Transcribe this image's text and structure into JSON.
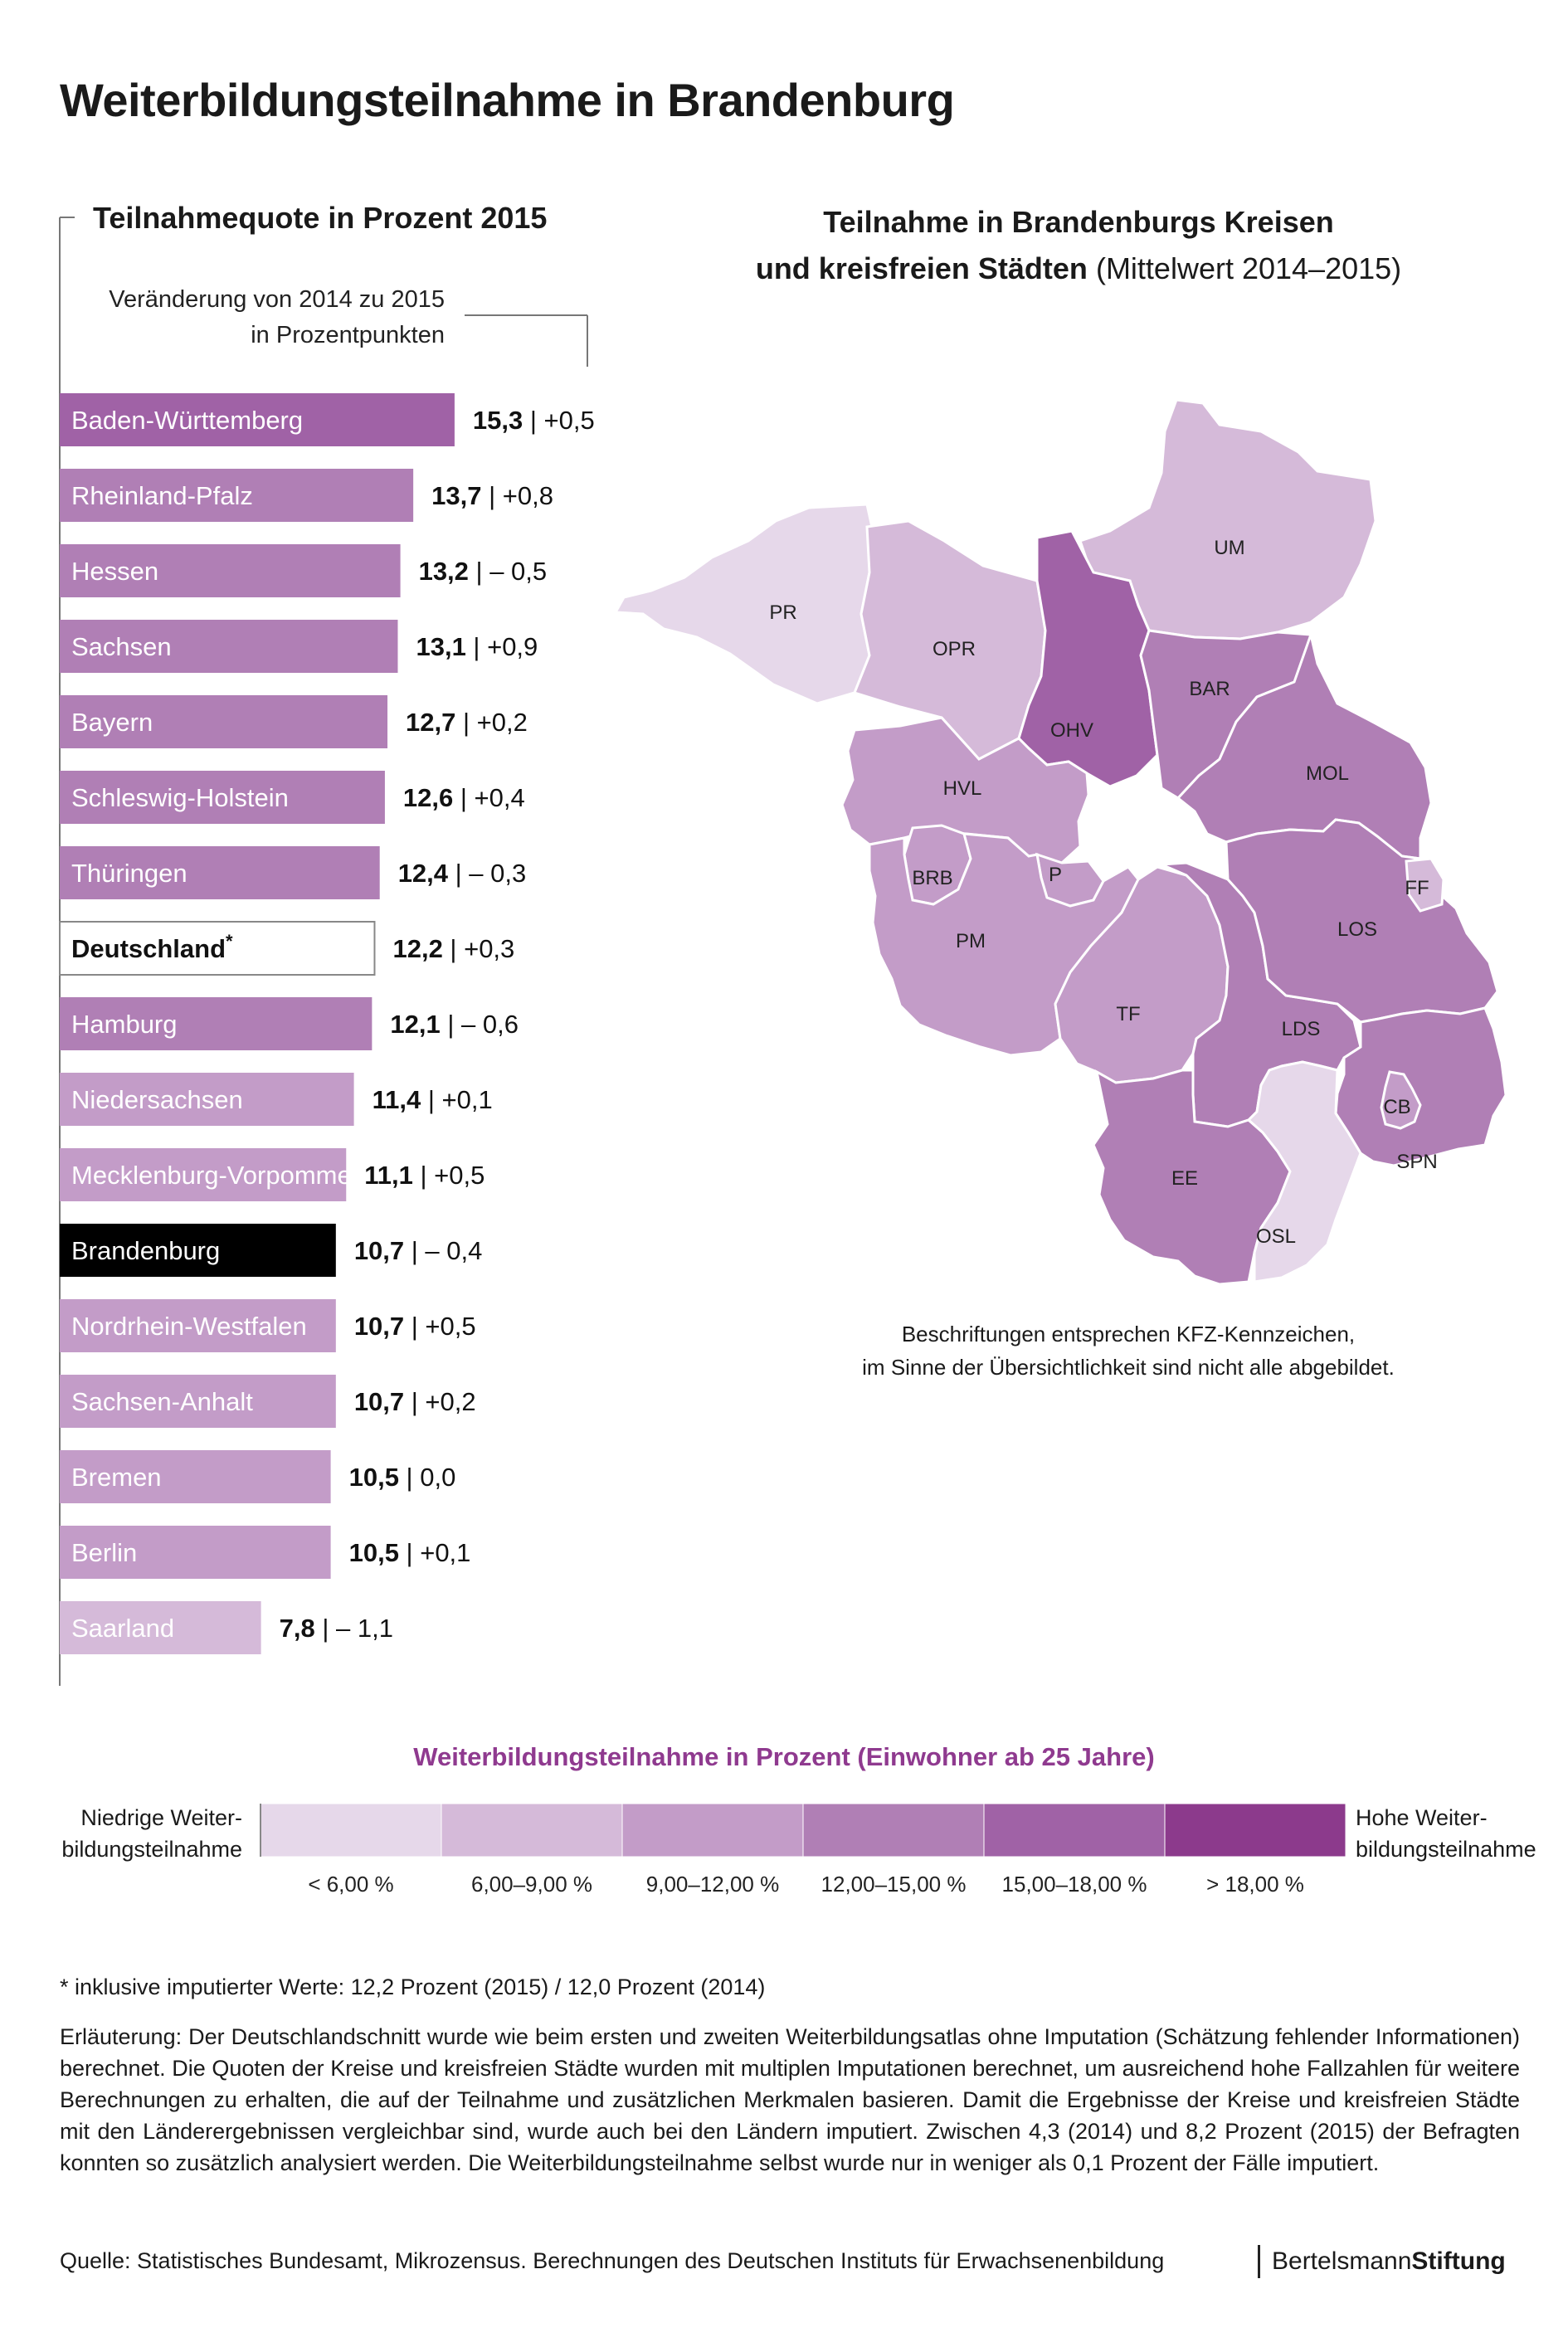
{
  "title": "Weiterbildungsteilnahme in Brandenburg",
  "bar_chart": {
    "title": "Teilnahmequote in Prozent 2015",
    "subtitle_line1": "Veränderung von 2014 zu 2015",
    "subtitle_line2": "in Prozentpunkten"
  },
  "map": {
    "title_line1": "Teilnahme in Brandenburgs Kreisen",
    "title_line2_bold": "und kreisfreien Städten",
    "title_line2_normal": "(Mittelwert 2014–2015)",
    "note_line1": "Beschriftungen entsprechen KFZ-Kennzeichen,",
    "note_line2": "im Sinne der Übersichtlichkeit sind nicht alle abgebildet.",
    "regions": [
      {
        "code": "PR",
        "level": 1
      },
      {
        "code": "OPR",
        "level": 2
      },
      {
        "code": "UM",
        "level": 2
      },
      {
        "code": "OHV",
        "level": 5
      },
      {
        "code": "BAR",
        "level": 4
      },
      {
        "code": "MOL",
        "level": 4
      },
      {
        "code": "HVL",
        "level": 3
      },
      {
        "code": "BRB",
        "level": 3
      },
      {
        "code": "P",
        "level": 3
      },
      {
        "code": "PM",
        "level": 3
      },
      {
        "code": "FF",
        "level": 3
      },
      {
        "code": "LOS",
        "level": 4
      },
      {
        "code": "TF",
        "level": 4
      },
      {
        "code": "LDS",
        "level": 2
      },
      {
        "code": "CB",
        "level": 4
      },
      {
        "code": "SPN",
        "level": 3
      },
      {
        "code": "EE",
        "level": 4
      },
      {
        "code": "OSL",
        "level": 1
      }
    ]
  },
  "legend": {
    "title": "Weiterbildungsteilnahme in Prozent (Einwohner ab 25 Jahre)",
    "low_line1": "Niedrige Weiter-",
    "low_line2": "bildungsteilnahme",
    "high_line1": "Hohe Weiter-",
    "high_line2": "bildungsteilnahme",
    "bins": [
      {
        "label": "< 6,00 %",
        "color": "#e6d8ea"
      },
      {
        "label": "6,00–9,00 %",
        "color": "#d5bad9"
      },
      {
        "label": "9,00–12,00 %",
        "color": "#c39cc8"
      },
      {
        "label": "12,00–15,00 %",
        "color": "#b07fb5"
      },
      {
        "label": "15,00–18,00 %",
        "color": "#a062a6"
      },
      {
        "label": "> 18,00 %",
        "color": "#8c3a8c"
      }
    ]
  },
  "chart_data": {
    "type": "bar",
    "orientation": "horizontal",
    "title": "Teilnahmequote in Prozent 2015",
    "bars": [
      {
        "label": "Baden-Württemberg",
        "value": 15.3,
        "value_text": "15,3",
        "change_text": "+0,5",
        "style": "level5"
      },
      {
        "label": "Rheinland-Pfalz",
        "value": 13.7,
        "value_text": "13,7",
        "change_text": "+0,8",
        "style": "level4"
      },
      {
        "label": "Hessen",
        "value": 13.2,
        "value_text": "13,2",
        "change_text": "– 0,5",
        "style": "level4"
      },
      {
        "label": "Sachsen",
        "value": 13.1,
        "value_text": "13,1",
        "change_text": "+0,9",
        "style": "level4"
      },
      {
        "label": "Bayern",
        "value": 12.7,
        "value_text": "12,7",
        "change_text": "+0,2",
        "style": "level4"
      },
      {
        "label": "Schleswig-Holstein",
        "value": 12.6,
        "value_text": "12,6",
        "change_text": "+0,4",
        "style": "level4"
      },
      {
        "label": "Thüringen",
        "value": 12.4,
        "value_text": "12,4",
        "change_text": "– 0,3",
        "style": "level4"
      },
      {
        "label": "Deutschland",
        "value": 12.2,
        "value_text": "12,2",
        "change_text": "+0,3",
        "style": "outline",
        "marker": "*"
      },
      {
        "label": "Hamburg",
        "value": 12.1,
        "value_text": "12,1",
        "change_text": "– 0,6",
        "style": "level4"
      },
      {
        "label": "Niedersachsen",
        "value": 11.4,
        "value_text": "11,4",
        "change_text": " +0,1",
        "style": "level3"
      },
      {
        "label": "Mecklenburg-Vorpommern",
        "value": 11.1,
        "value_text": "11,1",
        "change_text": "+0,5",
        "style": "level3"
      },
      {
        "label": "Brandenburg",
        "value": 10.7,
        "value_text": "10,7",
        "change_text": "– 0,4",
        "style": "highlight"
      },
      {
        "label": "Nordrhein-Westfalen",
        "value": 10.7,
        "value_text": "10,7",
        "change_text": "+0,5",
        "style": "level3"
      },
      {
        "label": "Sachsen-Anhalt",
        "value": 10.7,
        "value_text": "10,7",
        "change_text": "+0,2",
        "style": "level3"
      },
      {
        "label": "Bremen",
        "value": 10.5,
        "value_text": "10,5",
        "change_text": "0,0",
        "style": "level3"
      },
      {
        "label": "Berlin",
        "value": 10.5,
        "value_text": "10,5",
        "change_text": "+0,1",
        "style": "level3"
      },
      {
        "label": "Saarland",
        "value": 7.8,
        "value_text": "7,8",
        "change_text": "– 1,1",
        "style": "level2"
      }
    ],
    "xlim": [
      0,
      17.2
    ],
    "grid": false,
    "legend": "bottom"
  },
  "footnote": "* inklusive imputierter Werte: 12,2 Prozent (2015) / 12,0 Prozent (2014)",
  "explanation": "Erläuterung: Der Deutschlandschnitt wurde wie beim ersten und zweiten Weiterbildungsatlas ohne Imputation (Schätzung fehlender Informationen) berechnet. Die Quoten der Kreise und kreisfreien Städte wurden mit multiplen Imputationen berechnet, um ausreichend hohe Fallzahlen für weitere Berechnungen zu erhalten, die auf der Teilnahme und zusätzlichen Merkmalen basieren. Damit die Ergebnisse der Kreise und kreisfreien Städte mit den Länderergebnissen vergleichbar sind, wurde auch bei den Ländern imputiert. Zwischen 4,3 (2014) und 8,2 Prozent (2015) der Befragten konnten so zusätzlich analysiert werden. Die Weiterbildungsteilnahme selbst wurde nur in weniger als 0,1 Prozent der Fälle imputiert.",
  "source": "Quelle: Statistisches Bundesamt, Mikrozensus. Berechnungen des Deutschen Instituts für Erwachsenenbildung",
  "brand": {
    "normal": "Bertelsmann",
    "bold": "Stiftung"
  }
}
